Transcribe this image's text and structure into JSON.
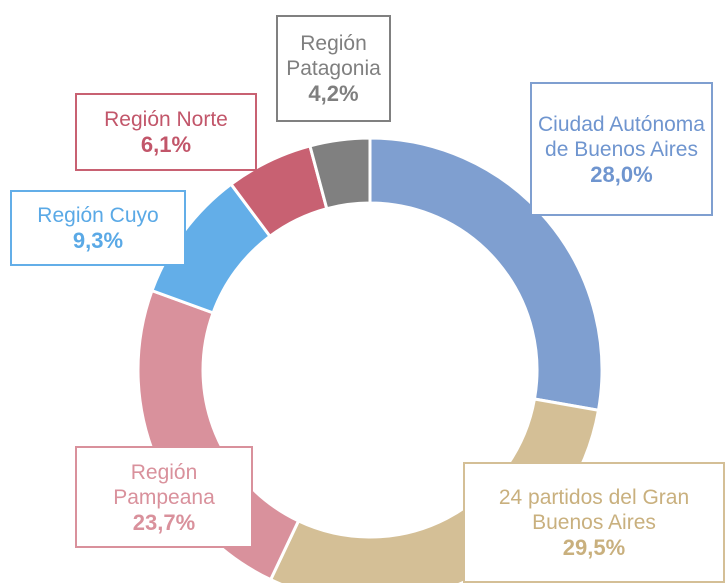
{
  "chart_data": {
    "type": "donut",
    "categories": [
      "Ciudad Autónoma de Buenos Aires",
      "24 partidos del Gran Buenos Aires",
      "Región Pampeana",
      "Región Cuyo",
      "Región Norte",
      "Región Patagonia"
    ],
    "values": [
      28.0,
      29.5,
      23.7,
      9.3,
      6.1,
      4.2
    ],
    "value_labels": [
      "28,0%",
      "29,5%",
      "23,7%",
      "9,3%",
      "6,1%",
      "4,2%"
    ],
    "colors": [
      "#7f9fd0",
      "#d4bf96",
      "#d9919c",
      "#63aee8",
      "#c86172",
      "#808080"
    ]
  }
}
